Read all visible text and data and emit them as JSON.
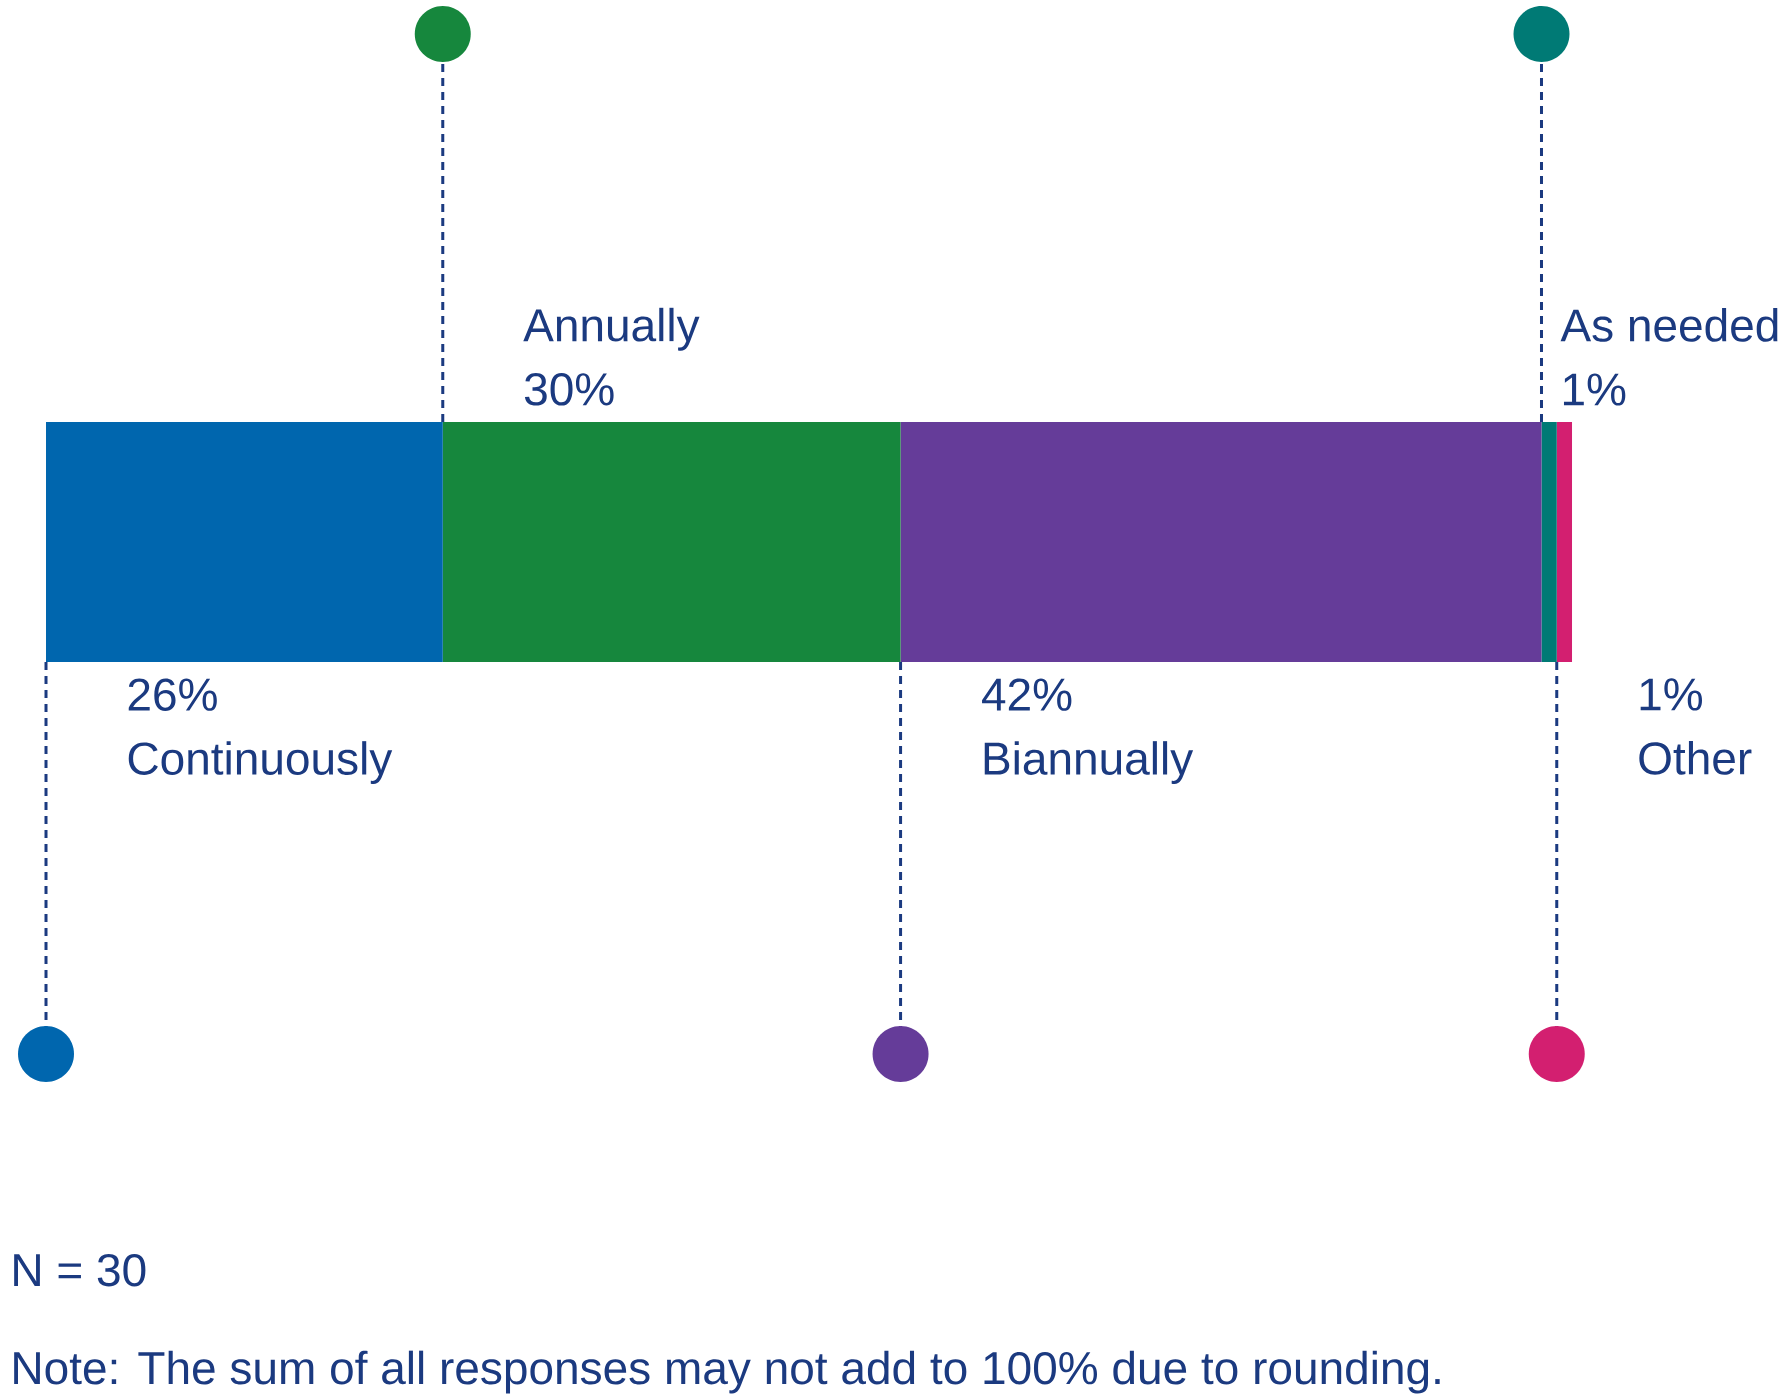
{
  "chart_data": {
    "type": "bar",
    "orientation": "horizontal",
    "stacked": true,
    "tick_labels": false,
    "categories": [
      null
    ],
    "series": [
      {
        "name": "Continuously",
        "color": "#0066ae",
        "values": [
          26
        ],
        "value_labels": [
          "26%"
        ]
      },
      {
        "name": "Annually",
        "color": "#16873d",
        "values": [
          30
        ],
        "value_labels": [
          "30%"
        ]
      },
      {
        "name": "Biannually",
        "color": "#653c99",
        "values": [
          42
        ],
        "value_labels": [
          "42%"
        ]
      },
      {
        "name": "As needed",
        "color": "#007a75",
        "values": [
          1
        ],
        "value_labels": [
          "1%"
        ]
      },
      {
        "name": "Other",
        "color": "#d31f70",
        "values": [
          1
        ],
        "value_labels": [
          "1%"
        ]
      }
    ],
    "annotations": [
      "N = 30",
      "Note: The sum of all responses may not add to 100% due to rounding."
    ]
  }
}
